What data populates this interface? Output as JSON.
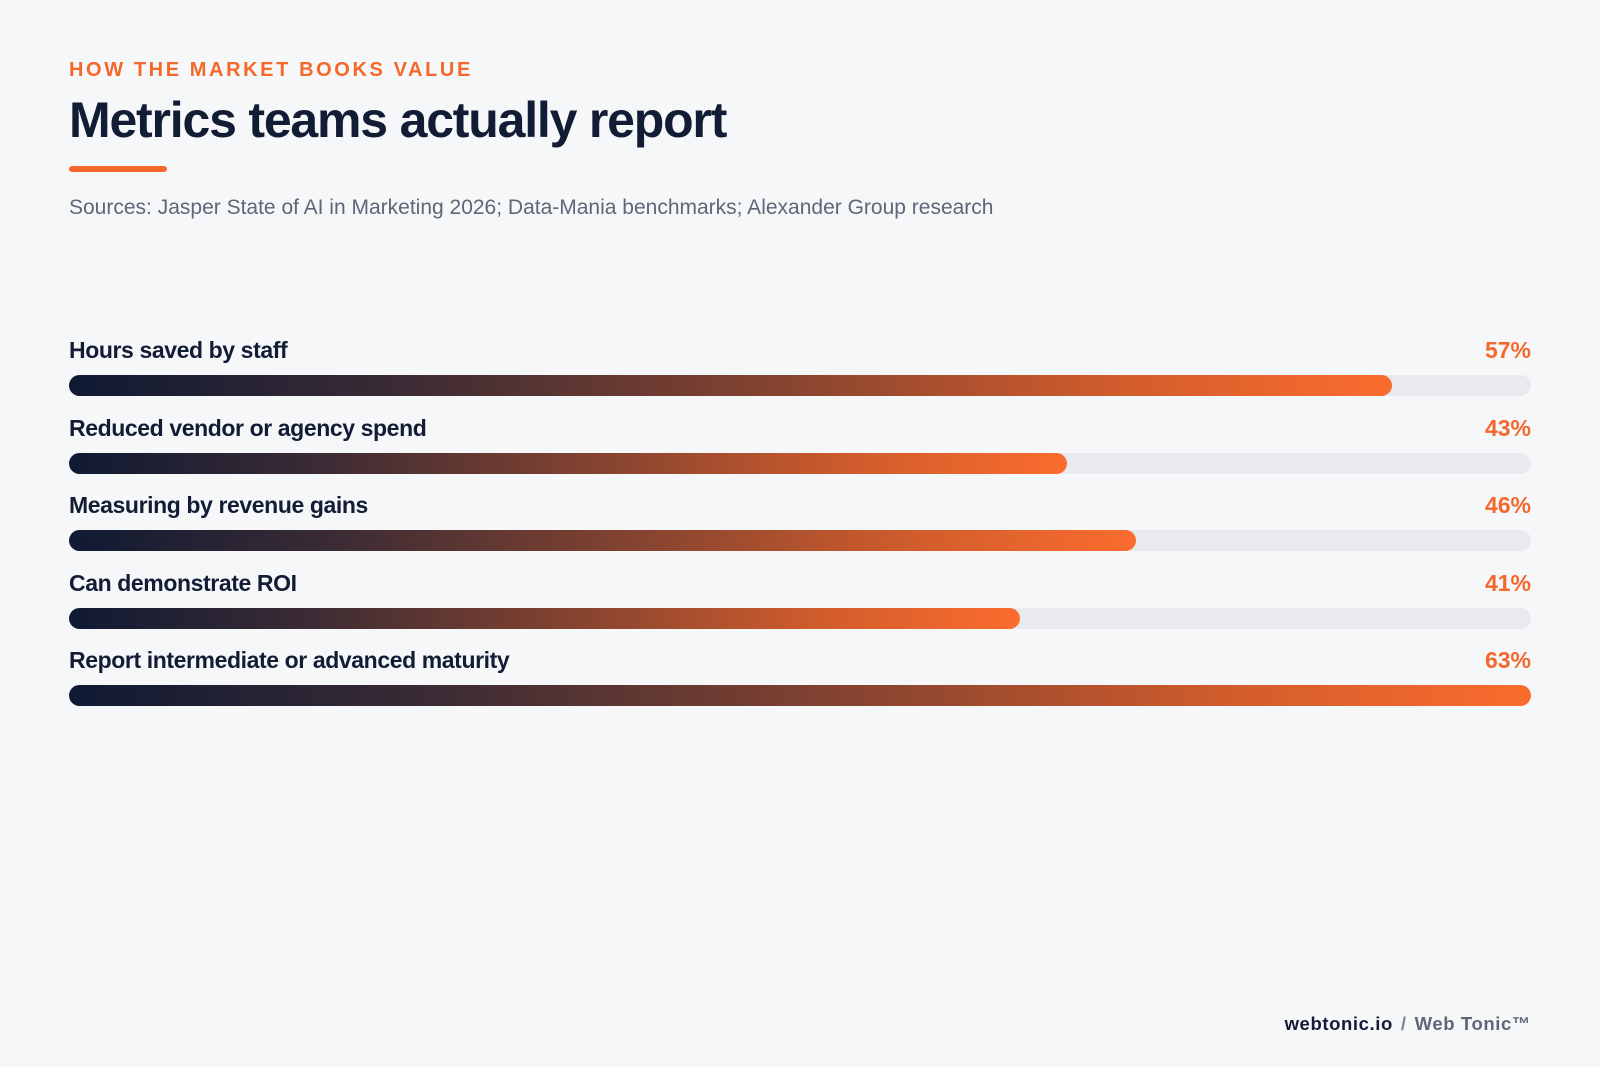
{
  "header": {
    "eyebrow": "HOW THE MARKET BOOKS VALUE",
    "title": "Metrics teams actually report",
    "sources": "Sources: Jasper State of AI in Marketing 2026; Data-Mania benchmarks; Alexander Group research"
  },
  "colors": {
    "accent": "#f4682c",
    "title": "#121d35",
    "track": "#e8eaee",
    "gradient_start": "#0f1a33",
    "gradient_end": "#fb6c2e"
  },
  "chart_data": {
    "type": "bar",
    "orientation": "horizontal",
    "categories": [
      "Hours saved by staff",
      "Reduced vendor or agency spend",
      "Measuring by revenue gains",
      "Can demonstrate ROI",
      "Report intermediate or advanced maturity"
    ],
    "values": [
      57,
      43,
      46,
      41,
      63
    ],
    "value_labels": [
      "57%",
      "43%",
      "46%",
      "41%",
      "63%"
    ],
    "xlim": [
      0,
      63
    ],
    "grid": false,
    "legend": "none"
  },
  "footer": {
    "domain": "webtonic.io",
    "separator": "/",
    "brand": "Web Tonic™"
  }
}
